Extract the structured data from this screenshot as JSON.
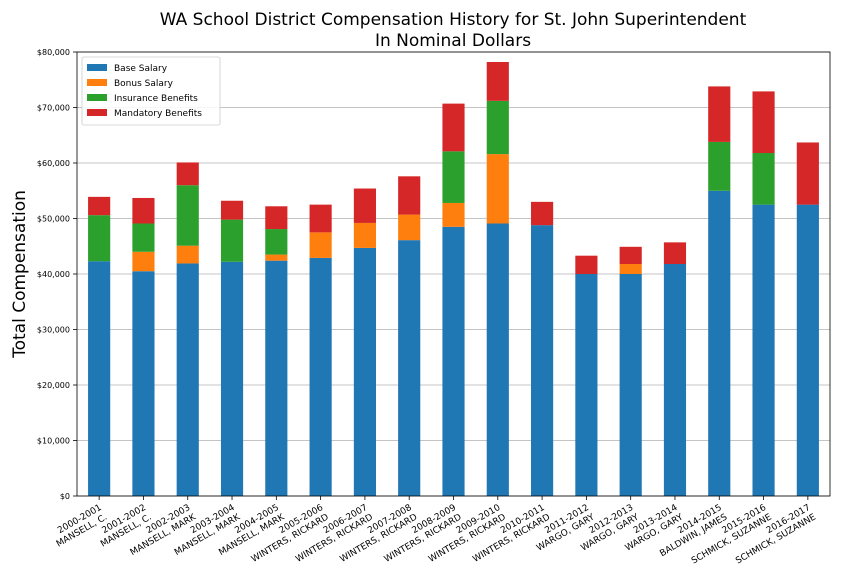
{
  "chart_data": {
    "type": "bar",
    "stacked": true,
    "title": "WA School District Compensation History for St. John Superintendent",
    "subtitle": "In Nominal Dollars",
    "xlabel": "",
    "ylabel": "Total Compensation",
    "ylim": [
      0,
      80000
    ],
    "yticks": [
      "$0",
      "$10,000",
      "$20,000",
      "$30,000",
      "$40,000",
      "$50,000",
      "$60,000",
      "$70,000",
      "$80,000"
    ],
    "grid": "horizontal",
    "legend_position": "top-left",
    "categories": [
      "2000-2001\nMANSELL, C.",
      "2001-2002\nMANSELL, C.",
      "2002-2003\nMANSELL, MARK",
      "2003-2004\nMANSELL, MARK",
      "2004-2005\nMANSELL, MARK",
      "2005-2006\nWINTERS, RICKARD",
      "2006-2007\nWINTERS, RICKARD",
      "2007-2008\nWINTERS, RICKARD",
      "2008-2009\nWINTERS, RICKARD",
      "2009-2010\nWINTERS, RICKARD",
      "2010-2011\nWINTERS, RICKARD",
      "2011-2012\nWARGO, GARY",
      "2012-2013\nWARGO, GARY",
      "2013-2014\nWARGO, GARY",
      "2014-2015\nBALDWIN, JAMES",
      "2015-2016\nSCHMICK, SUZANNE",
      "2016-2017\nSCHMICK, SUZANNE"
    ],
    "series": [
      {
        "name": "Base Salary",
        "color": "#1f77b4",
        "values": [
          42300,
          40500,
          41900,
          42200,
          42400,
          42900,
          44700,
          46100,
          48500,
          49100,
          48800,
          40000,
          40000,
          41800,
          55000,
          52500,
          52500
        ]
      },
      {
        "name": "Bonus Salary",
        "color": "#ff7f0e",
        "values": [
          0,
          3500,
          3200,
          0,
          1100,
          4600,
          4500,
          4600,
          4300,
          12500,
          0,
          0,
          1800,
          0,
          0,
          0,
          0
        ]
      },
      {
        "name": "Insurance Benefits",
        "color": "#2ca02c",
        "values": [
          8300,
          5100,
          10900,
          7600,
          4600,
          0,
          0,
          0,
          9300,
          9600,
          0,
          0,
          0,
          0,
          8800,
          9300,
          0
        ]
      },
      {
        "name": "Mandatory Benefits",
        "color": "#d62728",
        "values": [
          3300,
          4600,
          4100,
          3400,
          4100,
          5000,
          6200,
          6900,
          8600,
          7000,
          4200,
          3300,
          3100,
          3900,
          10000,
          11100,
          11200
        ]
      }
    ]
  }
}
